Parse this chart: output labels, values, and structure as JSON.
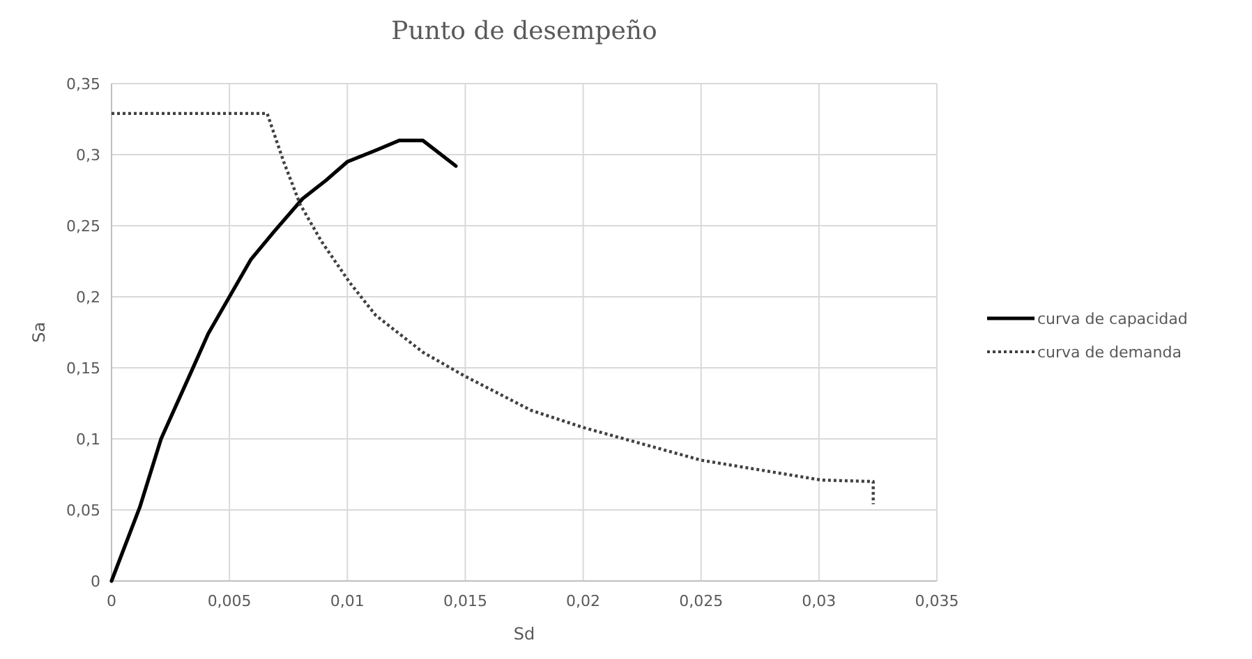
{
  "chart_data": {
    "type": "line",
    "title": "Punto de desempeño",
    "xlabel": "Sd",
    "ylabel": "Sa",
    "xlim": [
      0,
      0.035
    ],
    "xticks": [
      {
        "value": 0,
        "label": "0"
      },
      {
        "value": 0.005,
        "label": "0,005"
      },
      {
        "value": 0.01,
        "label": "0,01"
      },
      {
        "value": 0.015,
        "label": "0,015"
      },
      {
        "value": 0.02,
        "label": "0,02"
      },
      {
        "value": 0.025,
        "label": "0,025"
      },
      {
        "value": 0.03,
        "label": "0,03"
      },
      {
        "value": 0.035,
        "label": "0,035"
      }
    ],
    "ylim": [
      0,
      0.35
    ],
    "yticks": [
      {
        "value": 0,
        "label": "0"
      },
      {
        "value": 0.05,
        "label": "0,05"
      },
      {
        "value": 0.1,
        "label": "0,1"
      },
      {
        "value": 0.15,
        "label": "0,15"
      },
      {
        "value": 0.2,
        "label": "0,2"
      },
      {
        "value": 0.25,
        "label": "0,25"
      },
      {
        "value": 0.3,
        "label": "0,3"
      },
      {
        "value": 0.35,
        "label": "0,35"
      }
    ],
    "grid": true,
    "legend": "right",
    "marker": "none",
    "series": [
      {
        "name": "curva de capacidad",
        "color": "#000000",
        "line_style": "solid",
        "x": [
          0,
          0.0012,
          0.0021,
          0.0034,
          0.0041,
          0.005,
          0.0059,
          0.0069,
          0.0081,
          0.0091,
          0.01,
          0.0112,
          0.0122,
          0.0132,
          0.0146
        ],
        "values": [
          0,
          0.052,
          0.1,
          0.148,
          0.174,
          0.2,
          0.226,
          0.246,
          0.269,
          0.282,
          0.295,
          0.303,
          0.31,
          0.31,
          0.292
        ]
      },
      {
        "name": "curva de demanda",
        "color": "#404040",
        "line_style": "dotted",
        "x": [
          0,
          0.0066,
          0.0073,
          0.008,
          0.0089,
          0.0101,
          0.0112,
          0.0132,
          0.015,
          0.0178,
          0.02,
          0.025,
          0.0301,
          0.0323,
          0.0323
        ],
        "values": [
          0.329,
          0.329,
          0.295,
          0.265,
          0.239,
          0.21,
          0.187,
          0.161,
          0.144,
          0.12,
          0.108,
          0.085,
          0.071,
          0.07,
          0.054
        ]
      }
    ]
  }
}
